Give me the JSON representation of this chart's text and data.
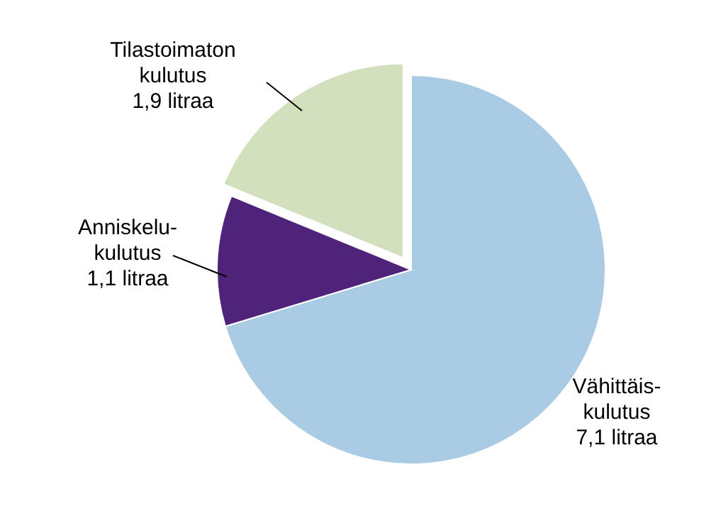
{
  "chart_data": {
    "type": "pie",
    "categories": [
      "Vähittäis-\nkulutus",
      "Anniskelu-\nkulutus",
      "Tilastoimaton\nkulutus"
    ],
    "values": [
      7.1,
      1.1,
      1.9
    ],
    "value_labels": [
      "7,1 litraa",
      "1,1 litraa",
      "1,9 litraa"
    ],
    "colors": [
      "#a9cbe3",
      "#4f237a",
      "#d3e0bd"
    ]
  }
}
